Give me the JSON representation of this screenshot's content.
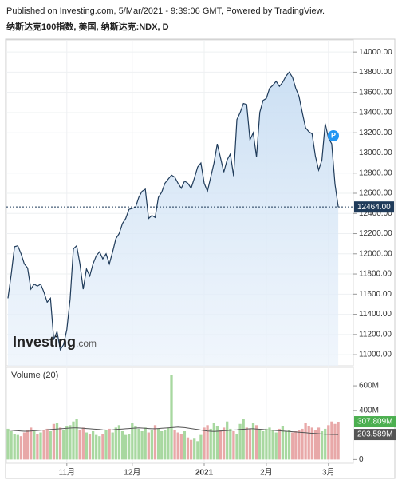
{
  "header": {
    "published": "Published on Investing.com, 5/Mar/2021 - 9:39:06 GMT, Powered by TradingView.",
    "symbol": "纳斯达克100指数, 美国, 纳斯达克:NDX, D"
  },
  "logo": {
    "main": "Investing",
    "suffix": ".com"
  },
  "chart_data": [
    {
      "type": "area",
      "color": "#1f3b5a",
      "fill": "#cfe0f3",
      "values": [
        11560,
        11800,
        12070,
        12080,
        12000,
        11900,
        11860,
        11650,
        11700,
        11680,
        11700,
        11620,
        11520,
        11560,
        11150,
        11230,
        11050,
        11100,
        11250,
        11550,
        12050,
        12080,
        11900,
        11650,
        11850,
        11780,
        11900,
        11980,
        12020,
        11950,
        12000,
        11900,
        12020,
        12150,
        12200,
        12300,
        12350,
        12440,
        12450,
        12460,
        12560,
        12620,
        12640,
        12350,
        12380,
        12360,
        12560,
        12610,
        12700,
        12740,
        12780,
        12760,
        12700,
        12650,
        12720,
        12700,
        12650,
        12750,
        12860,
        12900,
        12700,
        12620,
        12760,
        12900,
        13090,
        12950,
        12810,
        12930,
        12990,
        12770,
        13330,
        13400,
        13490,
        13480,
        13130,
        13200,
        12960,
        13400,
        13520,
        13540,
        13640,
        13670,
        13710,
        13660,
        13700,
        13760,
        13800,
        13750,
        13640,
        13560,
        13400,
        13250,
        13210,
        13190,
        12970,
        12830,
        12930,
        13290,
        13150,
        13090,
        12690,
        12464
      ],
      "last_label": "12464.00",
      "ylim": [
        10890,
        14120
      ],
      "yticks": [
        {
          "value": 11000,
          "label": "11000.00"
        },
        {
          "value": 11200,
          "label": "11200.00"
        },
        {
          "value": 11400,
          "label": "11400.00"
        },
        {
          "value": 11600,
          "label": "11600.00"
        },
        {
          "value": 11800,
          "label": "11800.00"
        },
        {
          "value": 12000,
          "label": "12000.00"
        },
        {
          "value": 12200,
          "label": "12200.00"
        },
        {
          "value": 12400,
          "label": "12400.00"
        },
        {
          "value": 12600,
          "label": "12600.00"
        },
        {
          "value": 12800,
          "label": "12800.00"
        },
        {
          "value": 13000,
          "label": "13000.00"
        },
        {
          "value": 13200,
          "label": "13200.00"
        },
        {
          "value": 13400,
          "label": "13400.00"
        },
        {
          "value": 13600,
          "label": "13600.00"
        },
        {
          "value": 13800,
          "label": "13800.00"
        },
        {
          "value": 14000,
          "label": "14000.00"
        }
      ],
      "grid": true
    },
    {
      "type": "bar",
      "title": "Volume (20)",
      "categories": [
        null,
        null,
        null,
        null,
        null,
        null,
        null,
        null,
        null,
        null,
        null,
        null,
        null,
        null,
        null,
        null,
        null,
        null,
        "11月",
        null,
        null,
        null,
        null,
        null,
        null,
        null,
        null,
        null,
        null,
        null,
        null,
        null,
        null,
        null,
        null,
        null,
        null,
        null,
        "12月",
        null,
        null,
        null,
        null,
        null,
        null,
        null,
        null,
        null,
        null,
        null,
        null,
        null,
        null,
        null,
        null,
        null,
        null,
        null,
        null,
        null,
        "2021",
        null,
        null,
        null,
        null,
        null,
        null,
        null,
        null,
        null,
        null,
        null,
        null,
        null,
        null,
        null,
        null,
        null,
        null,
        "2月",
        null,
        null,
        null,
        null,
        null,
        null,
        null,
        null,
        null,
        null,
        null,
        null,
        null,
        null,
        null,
        null,
        null,
        null,
        "3月",
        null,
        null,
        null
      ],
      "series": [
        {
          "up_color": "#a8d8a0",
          "down_color": "#e8a8a8",
          "label_color": "#4caf50",
          "values": [
            250,
            230,
            210,
            200,
            190,
            220,
            240,
            260,
            230,
            210,
            220,
            240,
            250,
            230,
            290,
            300,
            260,
            240,
            270,
            280,
            310,
            330,
            240,
            260,
            220,
            210,
            230,
            200,
            190,
            210,
            240,
            250,
            220,
            260,
            280,
            230,
            200,
            210,
            300,
            270,
            250,
            230,
            260,
            220,
            240,
            280,
            250,
            230,
            240,
            260,
            690,
            240,
            220,
            210,
            230,
            180,
            160,
            170,
            150,
            200,
            260,
            280,
            250,
            300,
            270,
            240,
            260,
            310,
            250,
            230,
            210,
            290,
            330,
            260,
            250,
            300,
            280,
            240,
            230,
            250,
            260,
            240,
            220,
            250,
            270,
            230,
            240,
            220,
            230,
            240,
            250,
            300,
            270,
            260,
            240,
            260,
            230,
            250,
            280,
            310,
            290,
            307.809
          ],
          "last_label": "307.809M"
        },
        {
          "color": "#555555",
          "values": [
            240,
            238,
            236,
            234,
            232,
            230,
            230,
            232,
            234,
            236,
            238,
            240,
            242,
            244,
            246,
            248,
            250,
            252,
            254,
            256,
            258,
            258,
            256,
            254,
            252,
            250,
            248,
            246,
            244,
            242,
            240,
            240,
            242,
            244,
            246,
            248,
            250,
            252,
            254,
            256,
            258,
            256,
            254,
            252,
            250,
            250,
            252,
            254,
            256,
            258,
            260,
            262,
            264,
            262,
            260,
            256,
            252,
            248,
            244,
            240,
            236,
            232,
            230,
            228,
            230,
            232,
            234,
            236,
            238,
            240,
            242,
            244,
            246,
            248,
            250,
            250,
            248,
            246,
            244,
            242,
            240,
            238,
            236,
            234,
            232,
            230,
            228,
            226,
            224,
            222,
            220,
            218,
            216,
            214,
            212,
            210,
            208,
            206,
            205,
            204,
            203.8,
            203.589
          ],
          "last_label": "203.589M"
        }
      ],
      "ylim": [
        -30,
        750
      ],
      "yticks": [
        0,
        {
          "value": 400,
          "label": "400M"
        },
        {
          "value": 600,
          "label": "600M"
        }
      ]
    }
  ]
}
